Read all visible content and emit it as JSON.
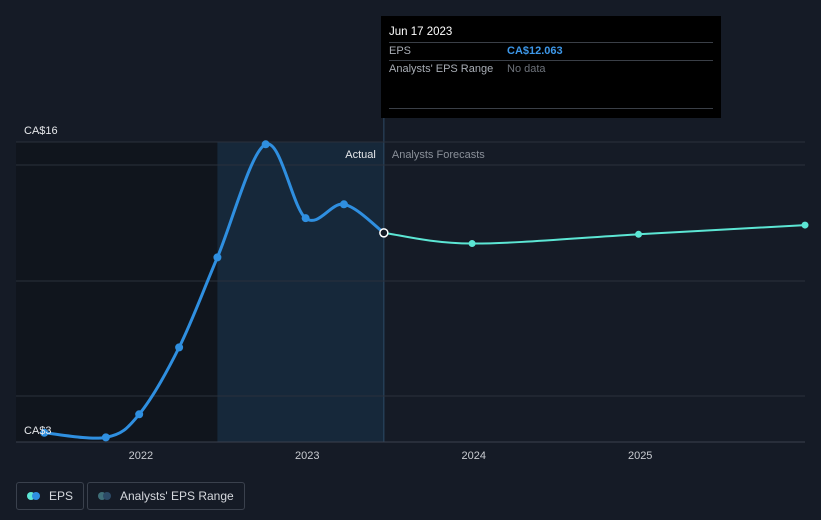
{
  "tooltip": {
    "date": "Jun 17 2023",
    "rows": [
      {
        "label": "EPS",
        "value": "CA$12.063"
      },
      {
        "label": "Analysts' EPS Range",
        "value": "No data"
      }
    ]
  },
  "regions": {
    "actual_label": "Actual",
    "forecast_label": "Analysts Forecasts"
  },
  "legend": {
    "eps_label": "EPS",
    "range_label": "Analysts' EPS Range"
  },
  "colors": {
    "background": "#151b26",
    "actual_line": "#2f8fe0",
    "forecast_line": "#5ce6d4",
    "actual_band": "#16283a",
    "past_band": "#10151d"
  },
  "chart_data": {
    "type": "line",
    "title": "",
    "xlabel": "",
    "ylabel": "",
    "ylim": [
      3,
      16
    ],
    "y_ticks": [
      {
        "value": 16,
        "label": "CA$16"
      },
      {
        "value": 3,
        "label": "CA$3"
      }
    ],
    "x_ticks": [
      {
        "value": 2022,
        "label": "2022"
      },
      {
        "value": 2023,
        "label": "2023"
      },
      {
        "value": 2024,
        "label": "2024"
      },
      {
        "value": 2025,
        "label": "2025"
      }
    ],
    "xlim": [
      2021.25,
      2025.99
    ],
    "series": [
      {
        "name": "EPS",
        "role": "actual",
        "x": [
          2021.42,
          2021.79,
          2021.99,
          2022.23,
          2022.46,
          2022.75,
          2022.99,
          2023.22,
          2023.46
        ],
        "y": [
          3.4,
          3.2,
          4.2,
          7.1,
          11.0,
          15.9,
          12.7,
          13.3,
          12.063
        ]
      },
      {
        "name": "EPS",
        "role": "forecast",
        "x": [
          2023.46,
          2023.99,
          2024.99,
          2025.99
        ],
        "y": [
          12.063,
          11.6,
          12.0,
          12.4
        ]
      }
    ]
  }
}
